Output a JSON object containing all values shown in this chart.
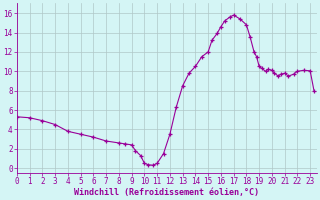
{
  "x_data": [
    0,
    1,
    2,
    3,
    4,
    5,
    6,
    7,
    8,
    8.5,
    9,
    9.3,
    9.7,
    10,
    10.3,
    10.7,
    11,
    11.5,
    12,
    12.5,
    13,
    13.5,
    14,
    14.5,
    15,
    15.3,
    15.7,
    16,
    16.3,
    16.7,
    17,
    17.5,
    18,
    18.3,
    18.6,
    18.8,
    19,
    19.2,
    19.5,
    19.7,
    20,
    20.2,
    20.5,
    20.7,
    21,
    21.3,
    21.7,
    22,
    22.5,
    23,
    23.3
  ],
  "y_data": [
    5.3,
    5.2,
    4.9,
    4.5,
    3.8,
    3.5,
    3.2,
    2.8,
    2.6,
    2.5,
    2.4,
    1.8,
    1.3,
    0.5,
    0.35,
    0.3,
    0.5,
    1.5,
    3.5,
    6.3,
    8.5,
    9.8,
    10.5,
    11.5,
    12.0,
    13.2,
    13.9,
    14.6,
    15.2,
    15.6,
    15.8,
    15.4,
    14.8,
    13.5,
    12.0,
    11.5,
    10.5,
    10.3,
    10.0,
    10.2,
    10.1,
    9.8,
    9.5,
    9.7,
    9.8,
    9.5,
    9.7,
    10.0,
    10.1,
    10.05,
    8.0
  ],
  "line_color": "#990099",
  "bg_color": "#d4f5f5",
  "grid_color": "#b0c8c8",
  "axis_color": "#990099",
  "xlabel": "Windchill (Refroidissement éolien,°C)",
  "ylim": [
    -0.5,
    17.0
  ],
  "xlim": [
    0,
    23.5
  ],
  "yticks": [
    0,
    2,
    4,
    6,
    8,
    10,
    12,
    14,
    16
  ],
  "xticks": [
    0,
    1,
    2,
    3,
    4,
    5,
    6,
    7,
    8,
    9,
    10,
    11,
    12,
    13,
    14,
    15,
    16,
    17,
    18,
    19,
    20,
    21,
    22,
    23
  ]
}
